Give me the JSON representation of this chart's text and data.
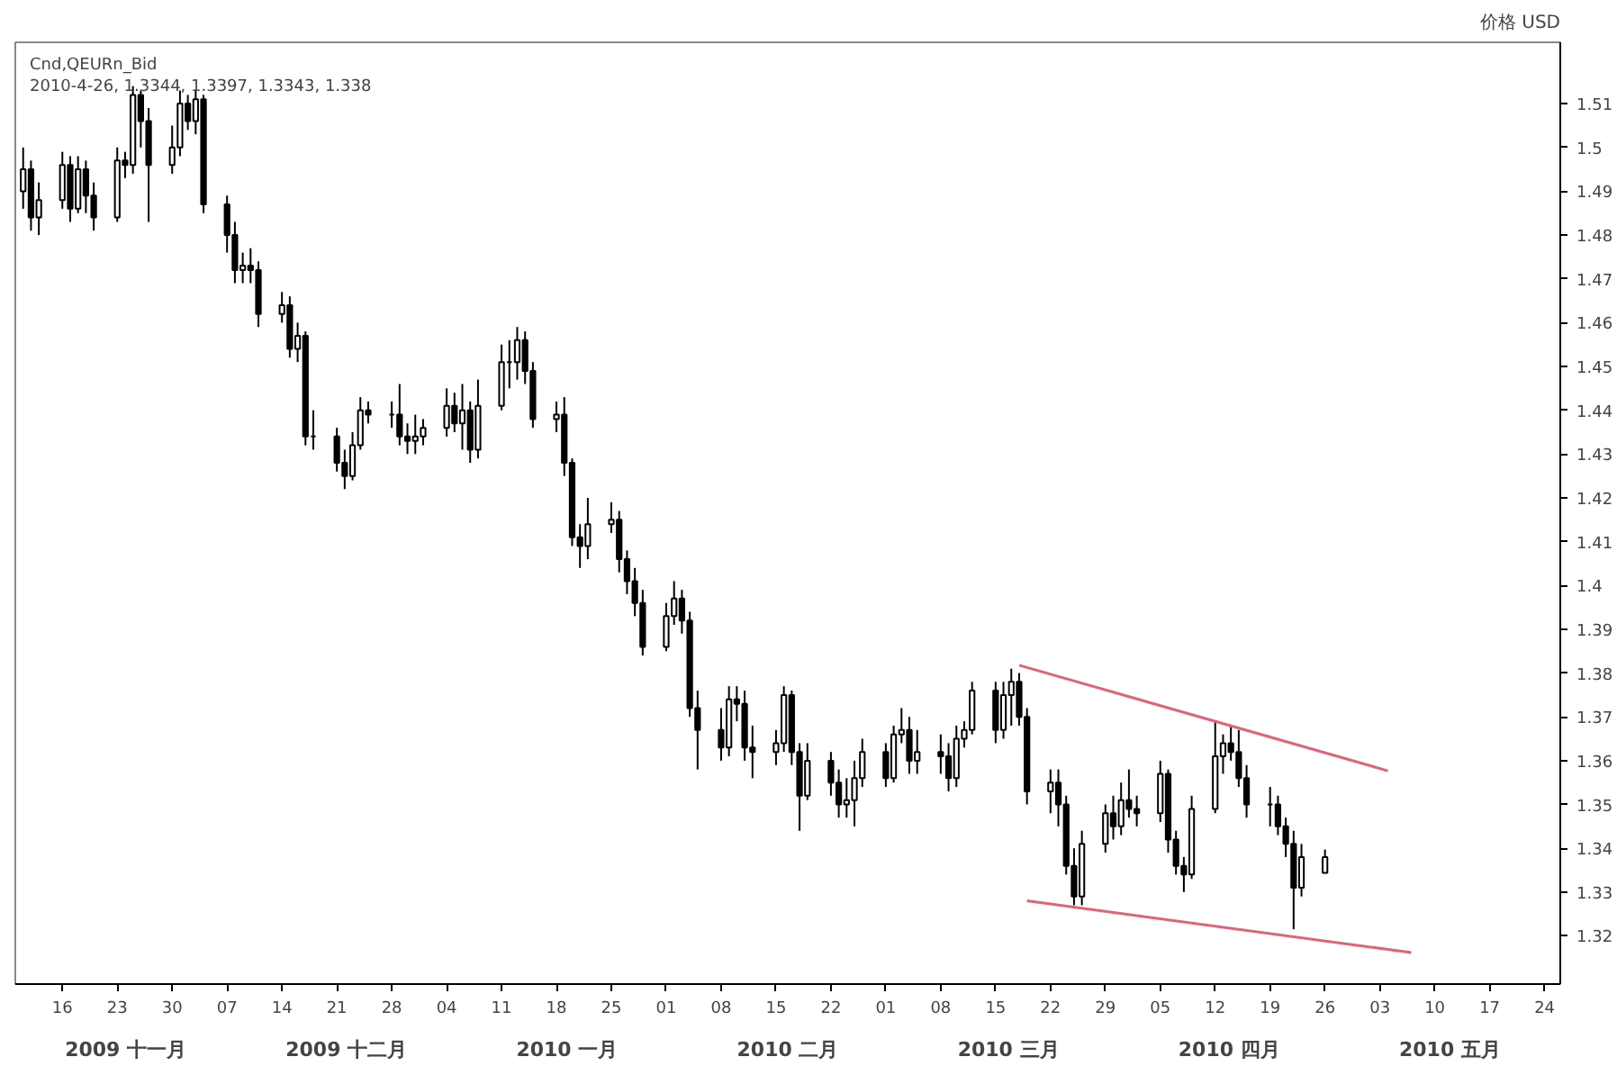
{
  "chart_data": {
    "type": "candlestick",
    "title": "Cnd,QEURn_Bid",
    "subtitle": "2010-4-26, 1.3344, 1.3397, 1.3343, 1.338",
    "ylabel": "价格 USD",
    "x": [
      "2009-11-11",
      "2009-11-12",
      "2009-11-13",
      "2009-11-16",
      "2009-11-17",
      "2009-11-18",
      "2009-11-19",
      "2009-11-20",
      "2009-11-23",
      "2009-11-24",
      "2009-11-25",
      "2009-11-26",
      "2009-11-27",
      "2009-11-30",
      "2009-12-01",
      "2009-12-02",
      "2009-12-03",
      "2009-12-04",
      "2009-12-07",
      "2009-12-08",
      "2009-12-09",
      "2009-12-10",
      "2009-12-11",
      "2009-12-14",
      "2009-12-15",
      "2009-12-16",
      "2009-12-17",
      "2009-12-18",
      "2009-12-21",
      "2009-12-22",
      "2009-12-23",
      "2009-12-24",
      "2009-12-25",
      "2009-12-28",
      "2009-12-29",
      "2009-12-30",
      "2009-12-31",
      "2010-01-01",
      "2010-01-04",
      "2010-01-05",
      "2010-01-06",
      "2010-01-07",
      "2010-01-08",
      "2010-01-11",
      "2010-01-12",
      "2010-01-13",
      "2010-01-14",
      "2010-01-15",
      "2010-01-18",
      "2010-01-19",
      "2010-01-20",
      "2010-01-21",
      "2010-01-22",
      "2010-01-25",
      "2010-01-26",
      "2010-01-27",
      "2010-01-28",
      "2010-01-29",
      "2010-02-01",
      "2010-02-02",
      "2010-02-03",
      "2010-02-04",
      "2010-02-05",
      "2010-02-08",
      "2010-02-09",
      "2010-02-10",
      "2010-02-11",
      "2010-02-12",
      "2010-02-15",
      "2010-02-16",
      "2010-02-17",
      "2010-02-18",
      "2010-02-19",
      "2010-02-22",
      "2010-02-23",
      "2010-02-24",
      "2010-02-25",
      "2010-02-26",
      "2010-03-01",
      "2010-03-02",
      "2010-03-03",
      "2010-03-04",
      "2010-03-05",
      "2010-03-08",
      "2010-03-09",
      "2010-03-10",
      "2010-03-11",
      "2010-03-12",
      "2010-03-15",
      "2010-03-16",
      "2010-03-17",
      "2010-03-18",
      "2010-03-19",
      "2010-03-22",
      "2010-03-23",
      "2010-03-24",
      "2010-03-25",
      "2010-03-26",
      "2010-03-29",
      "2010-03-30",
      "2010-03-31",
      "2010-04-01",
      "2010-04-02",
      "2010-04-05",
      "2010-04-06",
      "2010-04-07",
      "2010-04-08",
      "2010-04-09",
      "2010-04-12",
      "2010-04-13",
      "2010-04-14",
      "2010-04-15",
      "2010-04-16",
      "2010-04-19",
      "2010-04-20",
      "2010-04-21",
      "2010-04-22",
      "2010-04-23",
      "2010-04-26"
    ],
    "ohlc": [
      [
        1.49,
        1.5,
        1.486,
        1.495
      ],
      [
        1.495,
        1.497,
        1.481,
        1.484
      ],
      [
        1.484,
        1.492,
        1.48,
        1.488
      ],
      [
        1.488,
        1.499,
        1.486,
        1.496
      ],
      [
        1.496,
        1.498,
        1.483,
        1.486
      ],
      [
        1.486,
        1.498,
        1.485,
        1.495
      ],
      [
        1.495,
        1.497,
        1.485,
        1.489
      ],
      [
        1.489,
        1.492,
        1.481,
        1.484
      ],
      [
        1.484,
        1.5,
        1.483,
        1.497
      ],
      [
        1.497,
        1.499,
        1.493,
        1.496
      ],
      [
        1.496,
        1.514,
        1.494,
        1.512
      ],
      [
        1.512,
        1.513,
        1.5,
        1.506
      ],
      [
        1.506,
        1.509,
        1.483,
        1.496
      ],
      [
        1.496,
        1.505,
        1.494,
        1.5
      ],
      [
        1.5,
        1.513,
        1.498,
        1.51
      ],
      [
        1.51,
        1.512,
        1.504,
        1.506
      ],
      [
        1.506,
        1.513,
        1.503,
        1.511
      ],
      [
        1.511,
        1.512,
        1.485,
        1.487
      ],
      [
        1.487,
        1.489,
        1.476,
        1.48
      ],
      [
        1.48,
        1.483,
        1.469,
        1.472
      ],
      [
        1.472,
        1.476,
        1.469,
        1.473
      ],
      [
        1.473,
        1.477,
        1.469,
        1.472
      ],
      [
        1.472,
        1.474,
        1.459,
        1.462
      ],
      [
        1.462,
        1.467,
        1.46,
        1.464
      ],
      [
        1.464,
        1.466,
        1.452,
        1.454
      ],
      [
        1.454,
        1.46,
        1.451,
        1.457
      ],
      [
        1.457,
        1.458,
        1.432,
        1.434
      ],
      [
        1.434,
        1.44,
        1.431,
        1.434
      ],
      [
        1.434,
        1.436,
        1.426,
        1.428
      ],
      [
        1.428,
        1.431,
        1.422,
        1.425
      ],
      [
        1.425,
        1.435,
        1.424,
        1.432
      ],
      [
        1.432,
        1.443,
        1.431,
        1.44
      ],
      [
        1.44,
        1.442,
        1.437,
        1.439
      ],
      [
        1.439,
        1.442,
        1.436,
        1.439
      ],
      [
        1.439,
        1.446,
        1.432,
        1.434
      ],
      [
        1.434,
        1.437,
        1.43,
        1.433
      ],
      [
        1.433,
        1.439,
        1.43,
        1.434
      ],
      [
        1.434,
        1.438,
        1.432,
        1.436
      ],
      [
        1.436,
        1.445,
        1.434,
        1.441
      ],
      [
        1.441,
        1.444,
        1.435,
        1.437
      ],
      [
        1.437,
        1.446,
        1.431,
        1.44
      ],
      [
        1.44,
        1.442,
        1.428,
        1.431
      ],
      [
        1.431,
        1.447,
        1.429,
        1.441
      ],
      [
        1.441,
        1.455,
        1.44,
        1.451
      ],
      [
        1.451,
        1.456,
        1.445,
        1.451
      ],
      [
        1.451,
        1.459,
        1.447,
        1.456
      ],
      [
        1.456,
        1.458,
        1.446,
        1.449
      ],
      [
        1.449,
        1.451,
        1.436,
        1.438
      ],
      [
        1.438,
        1.442,
        1.435,
        1.439
      ],
      [
        1.439,
        1.443,
        1.425,
        1.428
      ],
      [
        1.428,
        1.429,
        1.409,
        1.411
      ],
      [
        1.411,
        1.414,
        1.404,
        1.409
      ],
      [
        1.409,
        1.42,
        1.406,
        1.414
      ],
      [
        1.414,
        1.419,
        1.412,
        1.415
      ],
      [
        1.415,
        1.417,
        1.403,
        1.406
      ],
      [
        1.406,
        1.408,
        1.398,
        1.401
      ],
      [
        1.401,
        1.404,
        1.393,
        1.396
      ],
      [
        1.396,
        1.399,
        1.384,
        1.386
      ],
      [
        1.386,
        1.396,
        1.385,
        1.393
      ],
      [
        1.393,
        1.401,
        1.391,
        1.397
      ],
      [
        1.397,
        1.399,
        1.389,
        1.392
      ],
      [
        1.392,
        1.394,
        1.37,
        1.372
      ],
      [
        1.372,
        1.376,
        1.358,
        1.367
      ],
      [
        1.367,
        1.372,
        1.36,
        1.363
      ],
      [
        1.363,
        1.377,
        1.361,
        1.374
      ],
      [
        1.374,
        1.377,
        1.369,
        1.373
      ],
      [
        1.373,
        1.376,
        1.36,
        1.363
      ],
      [
        1.363,
        1.368,
        1.356,
        1.362
      ],
      [
        1.362,
        1.367,
        1.359,
        1.364
      ],
      [
        1.364,
        1.377,
        1.362,
        1.375
      ],
      [
        1.375,
        1.376,
        1.359,
        1.362
      ],
      [
        1.362,
        1.364,
        1.344,
        1.352
      ],
      [
        1.352,
        1.364,
        1.351,
        1.36
      ],
      [
        1.36,
        1.362,
        1.352,
        1.355
      ],
      [
        1.355,
        1.358,
        1.347,
        1.35
      ],
      [
        1.35,
        1.356,
        1.347,
        1.351
      ],
      [
        1.351,
        1.36,
        1.345,
        1.356
      ],
      [
        1.356,
        1.365,
        1.354,
        1.362
      ],
      [
        1.362,
        1.364,
        1.354,
        1.356
      ],
      [
        1.356,
        1.368,
        1.355,
        1.366
      ],
      [
        1.366,
        1.372,
        1.364,
        1.367
      ],
      [
        1.367,
        1.37,
        1.357,
        1.36
      ],
      [
        1.36,
        1.367,
        1.357,
        1.362
      ],
      [
        1.362,
        1.366,
        1.357,
        1.361
      ],
      [
        1.361,
        1.364,
        1.353,
        1.356
      ],
      [
        1.356,
        1.368,
        1.354,
        1.365
      ],
      [
        1.365,
        1.369,
        1.363,
        1.367
      ],
      [
        1.367,
        1.378,
        1.366,
        1.376
      ],
      [
        1.376,
        1.378,
        1.364,
        1.367
      ],
      [
        1.367,
        1.378,
        1.365,
        1.375
      ],
      [
        1.375,
        1.381,
        1.368,
        1.378
      ],
      [
        1.378,
        1.38,
        1.368,
        1.37
      ],
      [
        1.37,
        1.372,
        1.35,
        1.353
      ],
      [
        1.353,
        1.358,
        1.348,
        1.355
      ],
      [
        1.355,
        1.358,
        1.345,
        1.35
      ],
      [
        1.35,
        1.352,
        1.334,
        1.336
      ],
      [
        1.336,
        1.34,
        1.327,
        1.329
      ],
      [
        1.329,
        1.344,
        1.327,
        1.341
      ],
      [
        1.341,
        1.35,
        1.339,
        1.348
      ],
      [
        1.348,
        1.352,
        1.342,
        1.345
      ],
      [
        1.345,
        1.355,
        1.343,
        1.351
      ],
      [
        1.351,
        1.358,
        1.347,
        1.349
      ],
      [
        1.349,
        1.352,
        1.345,
        1.348
      ],
      [
        1.348,
        1.36,
        1.346,
        1.357
      ],
      [
        1.357,
        1.358,
        1.339,
        1.342
      ],
      [
        1.342,
        1.344,
        1.334,
        1.336
      ],
      [
        1.336,
        1.338,
        1.33,
        1.334
      ],
      [
        1.334,
        1.352,
        1.333,
        1.349
      ],
      [
        1.349,
        1.369,
        1.348,
        1.361
      ],
      [
        1.361,
        1.366,
        1.357,
        1.364
      ],
      [
        1.364,
        1.368,
        1.36,
        1.362
      ],
      [
        1.362,
        1.367,
        1.354,
        1.356
      ],
      [
        1.356,
        1.359,
        1.347,
        1.35
      ],
      [
        1.35,
        1.354,
        1.345,
        1.35
      ],
      [
        1.35,
        1.352,
        1.343,
        1.345
      ],
      [
        1.345,
        1.347,
        1.338,
        1.341
      ],
      [
        1.341,
        1.344,
        1.3215,
        1.331
      ],
      [
        1.331,
        1.341,
        1.329,
        1.338
      ],
      [
        1.3344,
        1.3397,
        1.3343,
        1.338
      ]
    ],
    "series": [
      {
        "type": "line",
        "color": "#e06377",
        "x": [
          "2010-03-18",
          "2010-05-04"
        ],
        "values": [
          1.3818,
          1.3577
        ]
      },
      {
        "type": "line",
        "color": "#e06377",
        "x": [
          "2010-03-19",
          "2010-05-07"
        ],
        "values": [
          1.328,
          1.3162
        ]
      }
    ],
    "xlim": [
      "2009-11-10",
      "2010-05-26"
    ],
    "xticks": [
      {
        "value": "2009-11-16",
        "label": "16"
      },
      {
        "value": "2009-11-23",
        "label": "23"
      },
      {
        "value": "2009-11-30",
        "label": "30"
      },
      {
        "value": "2009-12-07",
        "label": "07"
      },
      {
        "value": "2009-12-14",
        "label": "14"
      },
      {
        "value": "2009-12-21",
        "label": "21"
      },
      {
        "value": "2009-12-28",
        "label": "28"
      },
      {
        "value": "2010-01-04",
        "label": "04"
      },
      {
        "value": "2010-01-11",
        "label": "11"
      },
      {
        "value": "2010-01-18",
        "label": "18"
      },
      {
        "value": "2010-01-25",
        "label": "25"
      },
      {
        "value": "2010-02-01",
        "label": "01"
      },
      {
        "value": "2010-02-08",
        "label": "08"
      },
      {
        "value": "2010-02-15",
        "label": "15"
      },
      {
        "value": "2010-02-22",
        "label": "22"
      },
      {
        "value": "2010-03-01",
        "label": "01"
      },
      {
        "value": "2010-03-08",
        "label": "08"
      },
      {
        "value": "2010-03-15",
        "label": "15"
      },
      {
        "value": "2010-03-22",
        "label": "22"
      },
      {
        "value": "2010-03-29",
        "label": "29"
      },
      {
        "value": "2010-04-05",
        "label": "05"
      },
      {
        "value": "2010-04-12",
        "label": "12"
      },
      {
        "value": "2010-04-19",
        "label": "19"
      },
      {
        "value": "2010-04-26",
        "label": "26"
      },
      {
        "value": "2010-05-03",
        "label": "03"
      },
      {
        "value": "2010-05-10",
        "label": "10"
      },
      {
        "value": "2010-05-17",
        "label": "17"
      },
      {
        "value": "2010-05-24",
        "label": "24"
      }
    ],
    "ylim": [
      1.309,
      1.524
    ],
    "yticks": [
      1.32,
      1.33,
      1.34,
      1.35,
      1.36,
      1.37,
      1.38,
      1.39,
      1.4,
      1.41,
      1.42,
      1.43,
      1.44,
      1.45,
      1.46,
      1.47,
      1.48,
      1.49,
      1.5,
      1.51
    ],
    "annotations": [
      "2009 十一月",
      "2009 十二月",
      "2010 一月",
      "2010 二月",
      "2010 三月",
      "2010 四月",
      "2010 五月"
    ],
    "grid": false
  }
}
